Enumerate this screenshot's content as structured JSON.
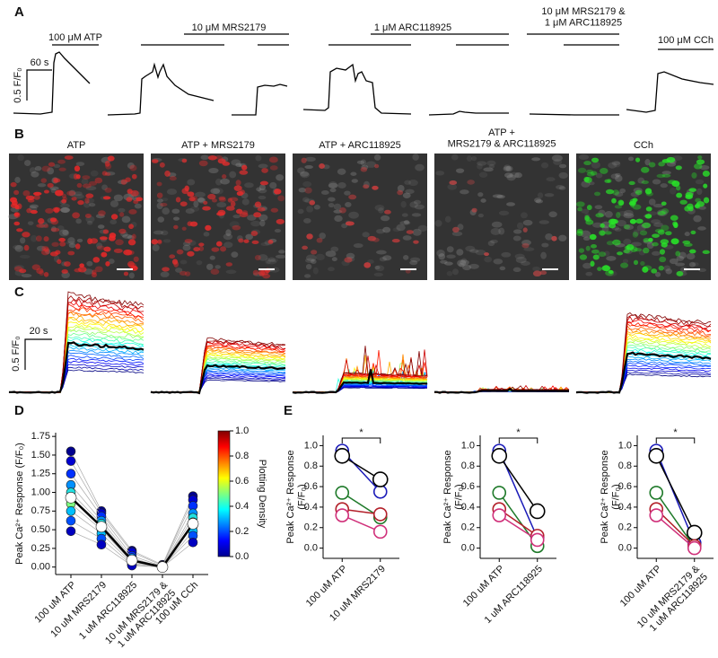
{
  "panel_labels": [
    "A",
    "B",
    "C",
    "D",
    "E"
  ],
  "panel_a": {
    "stimuli": [
      "100 μM ATP",
      "10 μM MRS2179",
      "1 μM ARC118925",
      "10 μM MRS2179 &\n1 μM ARC118925",
      "100 μM CCh"
    ],
    "time_scale": "60 s",
    "amplitude_scale": "0.5 F/F₀"
  },
  "panel_b": {
    "titles": [
      "ATP",
      "ATP + MRS2179",
      "ATP +  ARC118925",
      "ATP +\nMRS2179 & ARC118925",
      "CCh"
    ]
  },
  "panel_c": {
    "time_scale": "20 s",
    "amplitude_scale": "0.5 F/F₀"
  },
  "chart_data": [
    {
      "type": "line",
      "ylabel": "Peak Ca²⁺ Response  (F/F₀)",
      "categories": [
        "100 uM ATP",
        "10 uM MRS2179",
        "1 uM ARC118925",
        "10 uM MRS2179 &\n1 uM ARC118925",
        "100 uM CCh"
      ],
      "ylim": [
        -0.1,
        1.8
      ],
      "yticks": [
        {
          "value": 0,
          "label": "0.00"
        },
        0.25,
        {
          "value": 0.5,
          "label": "0.50"
        },
        0.75,
        {
          "value": 1,
          "label": "1.00"
        },
        1.25,
        {
          "value": 1.5,
          "label": "1.50"
        },
        1.75
      ],
      "series": [
        {
          "color": "#00008f",
          "line_color": "#aaaaaa",
          "values": [
            1.55,
            0.75,
            0.22,
            0.03,
            0.95
          ]
        },
        {
          "color": "#0000d0",
          "line_color": "#aaaaaa",
          "values": [
            1.42,
            0.72,
            0.2,
            0.02,
            0.9
          ]
        },
        {
          "color": "#0030ff",
          "line_color": "#aaaaaa",
          "values": [
            1.25,
            0.68,
            0.15,
            0.01,
            0.82
          ]
        },
        {
          "color": "#0090ff",
          "line_color": "#aaaaaa",
          "values": [
            1.1,
            0.62,
            0.12,
            0,
            0.72
          ]
        },
        {
          "color": "#20e0e0",
          "line_color": "#aaaaaa",
          "values": [
            1.0,
            0.58,
            0.1,
            0,
            0.66
          ]
        },
        {
          "color": "#f0f020",
          "line_color": "#aaaaaa",
          "values": [
            0.93,
            0.54,
            0.09,
            0,
            0.6
          ]
        },
        {
          "color": "#80ff80",
          "line_color": "#aaaaaa",
          "values": [
            0.85,
            0.5,
            0.07,
            0,
            0.55
          ]
        },
        {
          "color": "#00c0ff",
          "line_color": "#aaaaaa",
          "values": [
            0.75,
            0.45,
            0.05,
            0,
            0.48
          ]
        },
        {
          "color": "#0050ff",
          "line_color": "#aaaaaa",
          "values": [
            0.62,
            0.38,
            0.03,
            0,
            0.42
          ]
        },
        {
          "color": "#0000c0",
          "line_color": "#aaaaaa",
          "values": [
            0.48,
            0.3,
            0.02,
            0,
            0.33
          ]
        },
        {
          "color": "#ffffff",
          "line_color": "#000000",
          "values": [
            0.93,
            0.54,
            0.09,
            0,
            0.58
          ]
        }
      ],
      "colorbar": {
        "label": "Plotting Density",
        "lim": [
          0,
          1
        ],
        "ticks": [
          {
            "value": 0,
            "label": "0.0"
          },
          0.2,
          0.4,
          0.6,
          0.8,
          {
            "value": 1,
            "label": "1.0"
          }
        ]
      }
    },
    {
      "type": "line",
      "ylabel": "Peak Ca²⁺ Response\n(F/F₀)",
      "categories": [
        "100 uM ATP",
        "10 uM MRS2179"
      ],
      "ylim": [
        -0.1,
        1.1
      ],
      "yticks": [
        {
          "value": 0,
          "label": "0.0"
        },
        0.2,
        0.4,
        0.6,
        0.8,
        {
          "value": 1,
          "label": "1.0"
        }
      ],
      "annotation": "*",
      "hollow_markers": true,
      "series": [
        {
          "color": "#1a1ab8",
          "values": [
            0.95,
            0.55
          ]
        },
        {
          "color": "#000000",
          "values": [
            0.9,
            0.67
          ]
        },
        {
          "color": "#1f7a2a",
          "values": [
            0.54,
            0.3
          ]
        },
        {
          "color": "#b3202a",
          "values": [
            0.38,
            0.33
          ]
        },
        {
          "color": "#d0307a",
          "values": [
            0.32,
            0.16
          ]
        }
      ]
    },
    {
      "type": "line",
      "ylabel": "Peak Ca²⁺ Response\n(F/F₀)",
      "categories": [
        "100 uM ATP",
        "1 uM ARC118925"
      ],
      "ylim": [
        -0.1,
        1.1
      ],
      "yticks": [
        {
          "value": 0,
          "label": "0.0"
        },
        0.2,
        0.4,
        0.6,
        0.8,
        {
          "value": 1,
          "label": "1.0"
        }
      ],
      "annotation": "*",
      "hollow_markers": true,
      "series": [
        {
          "color": "#1a1ab8",
          "values": [
            0.95,
            0.1
          ]
        },
        {
          "color": "#000000",
          "values": [
            0.9,
            0.36
          ]
        },
        {
          "color": "#1f7a2a",
          "values": [
            0.54,
            0.02
          ]
        },
        {
          "color": "#b3202a",
          "values": [
            0.38,
            0.12
          ]
        },
        {
          "color": "#d0307a",
          "values": [
            0.32,
            0.08
          ]
        }
      ]
    },
    {
      "type": "line",
      "ylabel": "Peak Ca²⁺ Response\n(F/F₀)",
      "categories": [
        "100 uM ATP",
        "10 uM MRS2179 &\n1 uM ARC118925"
      ],
      "ylim": [
        -0.1,
        1.1
      ],
      "yticks": [
        {
          "value": 0,
          "label": "0.0"
        },
        0.2,
        0.4,
        0.6,
        0.8,
        {
          "value": 1,
          "label": "1.0"
        }
      ],
      "annotation": "*",
      "hollow_markers": true,
      "series": [
        {
          "color": "#1a1ab8",
          "values": [
            0.95,
            0.05
          ]
        },
        {
          "color": "#000000",
          "values": [
            0.9,
            0.15
          ]
        },
        {
          "color": "#1f7a2a",
          "values": [
            0.54,
            0.01
          ]
        },
        {
          "color": "#b3202a",
          "values": [
            0.38,
            0.02
          ]
        },
        {
          "color": "#d0307a",
          "values": [
            0.32,
            0
          ]
        }
      ]
    }
  ]
}
